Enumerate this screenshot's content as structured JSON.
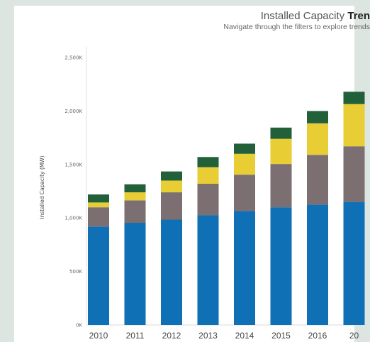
{
  "chart_data": {
    "type": "bar",
    "stacked": true,
    "title_plain": "Installed Capacity",
    "title_bold": "Tren",
    "subtitle": "Navigate through the filters to explore trends",
    "ylabel": "Installed Capacity (MW)",
    "ylim": [
      0,
      2600
    ],
    "yticks": [
      "0K",
      "500K",
      "1,000K",
      "1,500K",
      "2,000K",
      "2,500K"
    ],
    "ytick_values": [
      0,
      500,
      1000,
      1500,
      2000,
      2500
    ],
    "categories": [
      "2010",
      "2011",
      "2012",
      "2013",
      "2014",
      "2015",
      "2016",
      "20"
    ],
    "series": [
      {
        "color": "#0f70b5",
        "values": [
          920,
          955,
          985,
          1025,
          1065,
          1100,
          1125,
          1150
        ]
      },
      {
        "color": "#7c6f72",
        "values": [
          180,
          210,
          255,
          295,
          340,
          405,
          465,
          520
        ]
      },
      {
        "color": "#e8cd35",
        "values": [
          45,
          75,
          110,
          155,
          195,
          235,
          295,
          395
        ]
      },
      {
        "color": "#22603a",
        "values": [
          75,
          75,
          85,
          95,
          95,
          105,
          115,
          115
        ]
      }
    ],
    "grid": false
  }
}
